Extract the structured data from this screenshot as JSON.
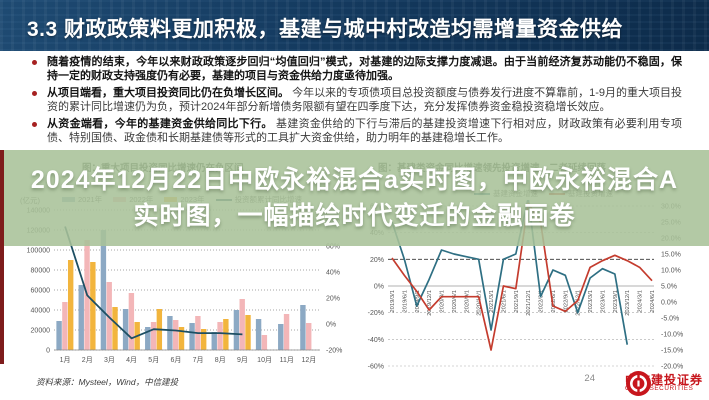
{
  "header": {
    "title": "3.3 财政政策料更加积极，基建与城中村改造均需增量资金供给"
  },
  "bullets": [
    {
      "lead": "随着疫情的结束，今年以来财政政策逐步回归“均值回归”模式，对基建的边际支撑力度减退。由于当前经济复苏动能仍不稳固，保持一定的财政支持强度仍有必要，基建的项目与资金供给力度亟待加强。",
      "rest": ""
    },
    {
      "lead": "从项目端看，重大项目投资同比仍在负增长区间。",
      "rest": "今年以来的专项债项目总投资额度与债券发行进度不算靠前，1-9月的重大项目投资的累计同比增速仍为负，预计2024年部分新增债务限额有望在四季度下达，充分发挥债券资金稳投资稳增长效应。"
    },
    {
      "lead": "从资金端看，今年的基建资金供给同比下行。",
      "rest": "基建资金供给的下行与滞后的基建投资增速下行相对应，财政政策有必要利用专项债、特别国债、政金债和长期基建债等形式的工具扩大资金供给，助力明年的基建稳增长工作。"
    }
  ],
  "overlay": {
    "line1": "2024年12月22日中欧永裕混合a实时图，中欧永裕混合A",
    "line2": "实时图，一幅描绘时代变迁的金融画卷"
  },
  "footer": {
    "source": "资料来源：Mysteel，Wind，中信建投",
    "page": "24",
    "logo_cn": "中信建投证券",
    "logo_en": "CHINA SECURITIES"
  },
  "colors": {
    "banner_bg": "#143a5f",
    "band_green": "#a8c198",
    "accent_red": "#7e1c1c",
    "logo_red": "#c7161d",
    "bar_2021": "#8ca9c4",
    "bar_2022": "#f3b6b8",
    "bar_2023": "#f2b53d",
    "line_dark_teal": "#1d4f63",
    "line_blue": "#2e6f83",
    "line_red": "#c43c2e"
  },
  "chart_data": [
    {
      "type": "bar",
      "title": "图：重大项目投资同比增速仍在负区间",
      "unit_label": "(亿元)",
      "categories": [
        "1月",
        "2月",
        "3月",
        "4月",
        "5月",
        "6月",
        "7月",
        "8月",
        "9月",
        "10月",
        "11月",
        "12月"
      ],
      "series": [
        {
          "name": "2021年",
          "color": "#8ca9c4",
          "values": [
            29000,
            65000,
            120000,
            41000,
            23000,
            34000,
            27000,
            18000,
            40000,
            31000,
            26000,
            45000
          ]
        },
        {
          "name": "2022年",
          "color": "#f3b6b8",
          "values": [
            48000,
            110000,
            68000,
            57000,
            28000,
            30000,
            34000,
            28000,
            51000,
            15000,
            36000,
            27000
          ]
        },
        {
          "name": "2023年",
          "color": "#f2b53d",
          "values": [
            90000,
            88000,
            43000,
            28000,
            41000,
            23000,
            21000,
            31000,
            35000,
            null,
            null,
            null
          ]
        }
      ],
      "line_series": {
        "name": "投资额累计同比增速",
        "color": "#1d4f63",
        "axis": "right",
        "values_pct": [
          75,
          22,
          5,
          -11,
          -4,
          -5,
          -7,
          -7,
          -8
        ]
      },
      "ylim_left": [
        0,
        140000
      ],
      "yticks_left": [
        0,
        20000,
        40000,
        60000,
        80000,
        100000,
        120000,
        140000
      ],
      "yticks_right": [
        "-20%",
        "0%",
        "20%",
        "40%",
        "60%",
        "80%"
      ],
      "grid": "dotted",
      "legend_position": "top"
    },
    {
      "type": "line",
      "title": "图：基建类资金同比增速领先投资增速，二者延续回落",
      "x": [
        "2019/3/1",
        "2019/6/1",
        "2019/9/1",
        "2019/12/1",
        "2020/3/1",
        "2020/6/1",
        "2020/9/1",
        "2020/12/1",
        "2021/3/1",
        "2021/6/1",
        "2021/9/1",
        "2021/12/1",
        "2022/3/1",
        "2022/6/1",
        "2022/9/1",
        "2022/12/1",
        "2023/3/1",
        "2023/6/1",
        "2023/9/1",
        "2023/12/1",
        "2024/3/1",
        "2024/6/1"
      ],
      "series": [
        {
          "name": "基建资金增速",
          "color": "#2e6f83",
          "axis": "left",
          "values": [
            48,
            20,
            -15,
            5,
            27,
            24,
            22,
            20,
            -33,
            20,
            24,
            66,
            -8,
            12,
            8,
            -20,
            6,
            13,
            9,
            -44,
            null,
            null
          ]
        },
        {
          "name": "基建投资增速",
          "color": "#c43c2e",
          "axis": "left",
          "values": [
            21,
            8,
            -4,
            -18,
            -8,
            -8,
            -8,
            -8,
            -48,
            0,
            -2,
            62,
            48,
            -15,
            -19,
            -11,
            14,
            19,
            23,
            19,
            14,
            4
          ]
        }
      ],
      "ylim_left": [
        -60,
        60
      ],
      "yticks_left": [
        "60%",
        "40%",
        "20%",
        "0%",
        "-20%",
        "-40%",
        "-60%"
      ],
      "yticks_right": [
        "30.0%",
        "25.0%",
        "20.0%",
        "15.0%",
        "10.0%",
        "5.0%",
        "0.0%",
        "-5.0%",
        "-10.0%",
        "-15.0%",
        "-20.0%"
      ],
      "grid": "dashed",
      "legend_position": "top"
    }
  ]
}
